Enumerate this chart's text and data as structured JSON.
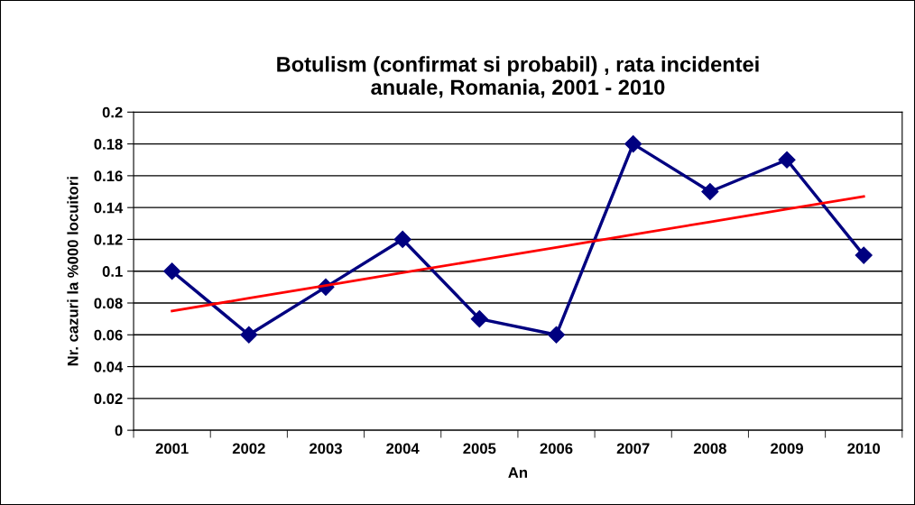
{
  "chart_data": {
    "type": "line",
    "title": "Botulism (confirmat si probabil) , rata incidentei\nanuale, Romania, 2001 - 2010",
    "xlabel": "An",
    "ylabel": "Nr. cazuri la %000 locuitori",
    "categories": [
      "2001",
      "2002",
      "2003",
      "2004",
      "2005",
      "2006",
      "2007",
      "2008",
      "2009",
      "2010"
    ],
    "series": [
      {
        "color": "#000080",
        "values": [
          0.1,
          0.06,
          0.09,
          0.12,
          0.07,
          0.06,
          0.18,
          0.15,
          0.17,
          0.11
        ],
        "marker": "diamond"
      },
      {
        "color": "#ff0000",
        "values": [
          0.075,
          0.083,
          0.091,
          0.099,
          0.107,
          0.115,
          0.123,
          0.131,
          0.139,
          0.147
        ],
        "marker": "none"
      }
    ],
    "ylim": [
      0,
      0.2
    ],
    "yticks": [
      0,
      0.02,
      0.04,
      0.06,
      0.08,
      0.1,
      0.12,
      0.14,
      0.16,
      0.18,
      0.2
    ],
    "grid": "y",
    "legend": false
  }
}
